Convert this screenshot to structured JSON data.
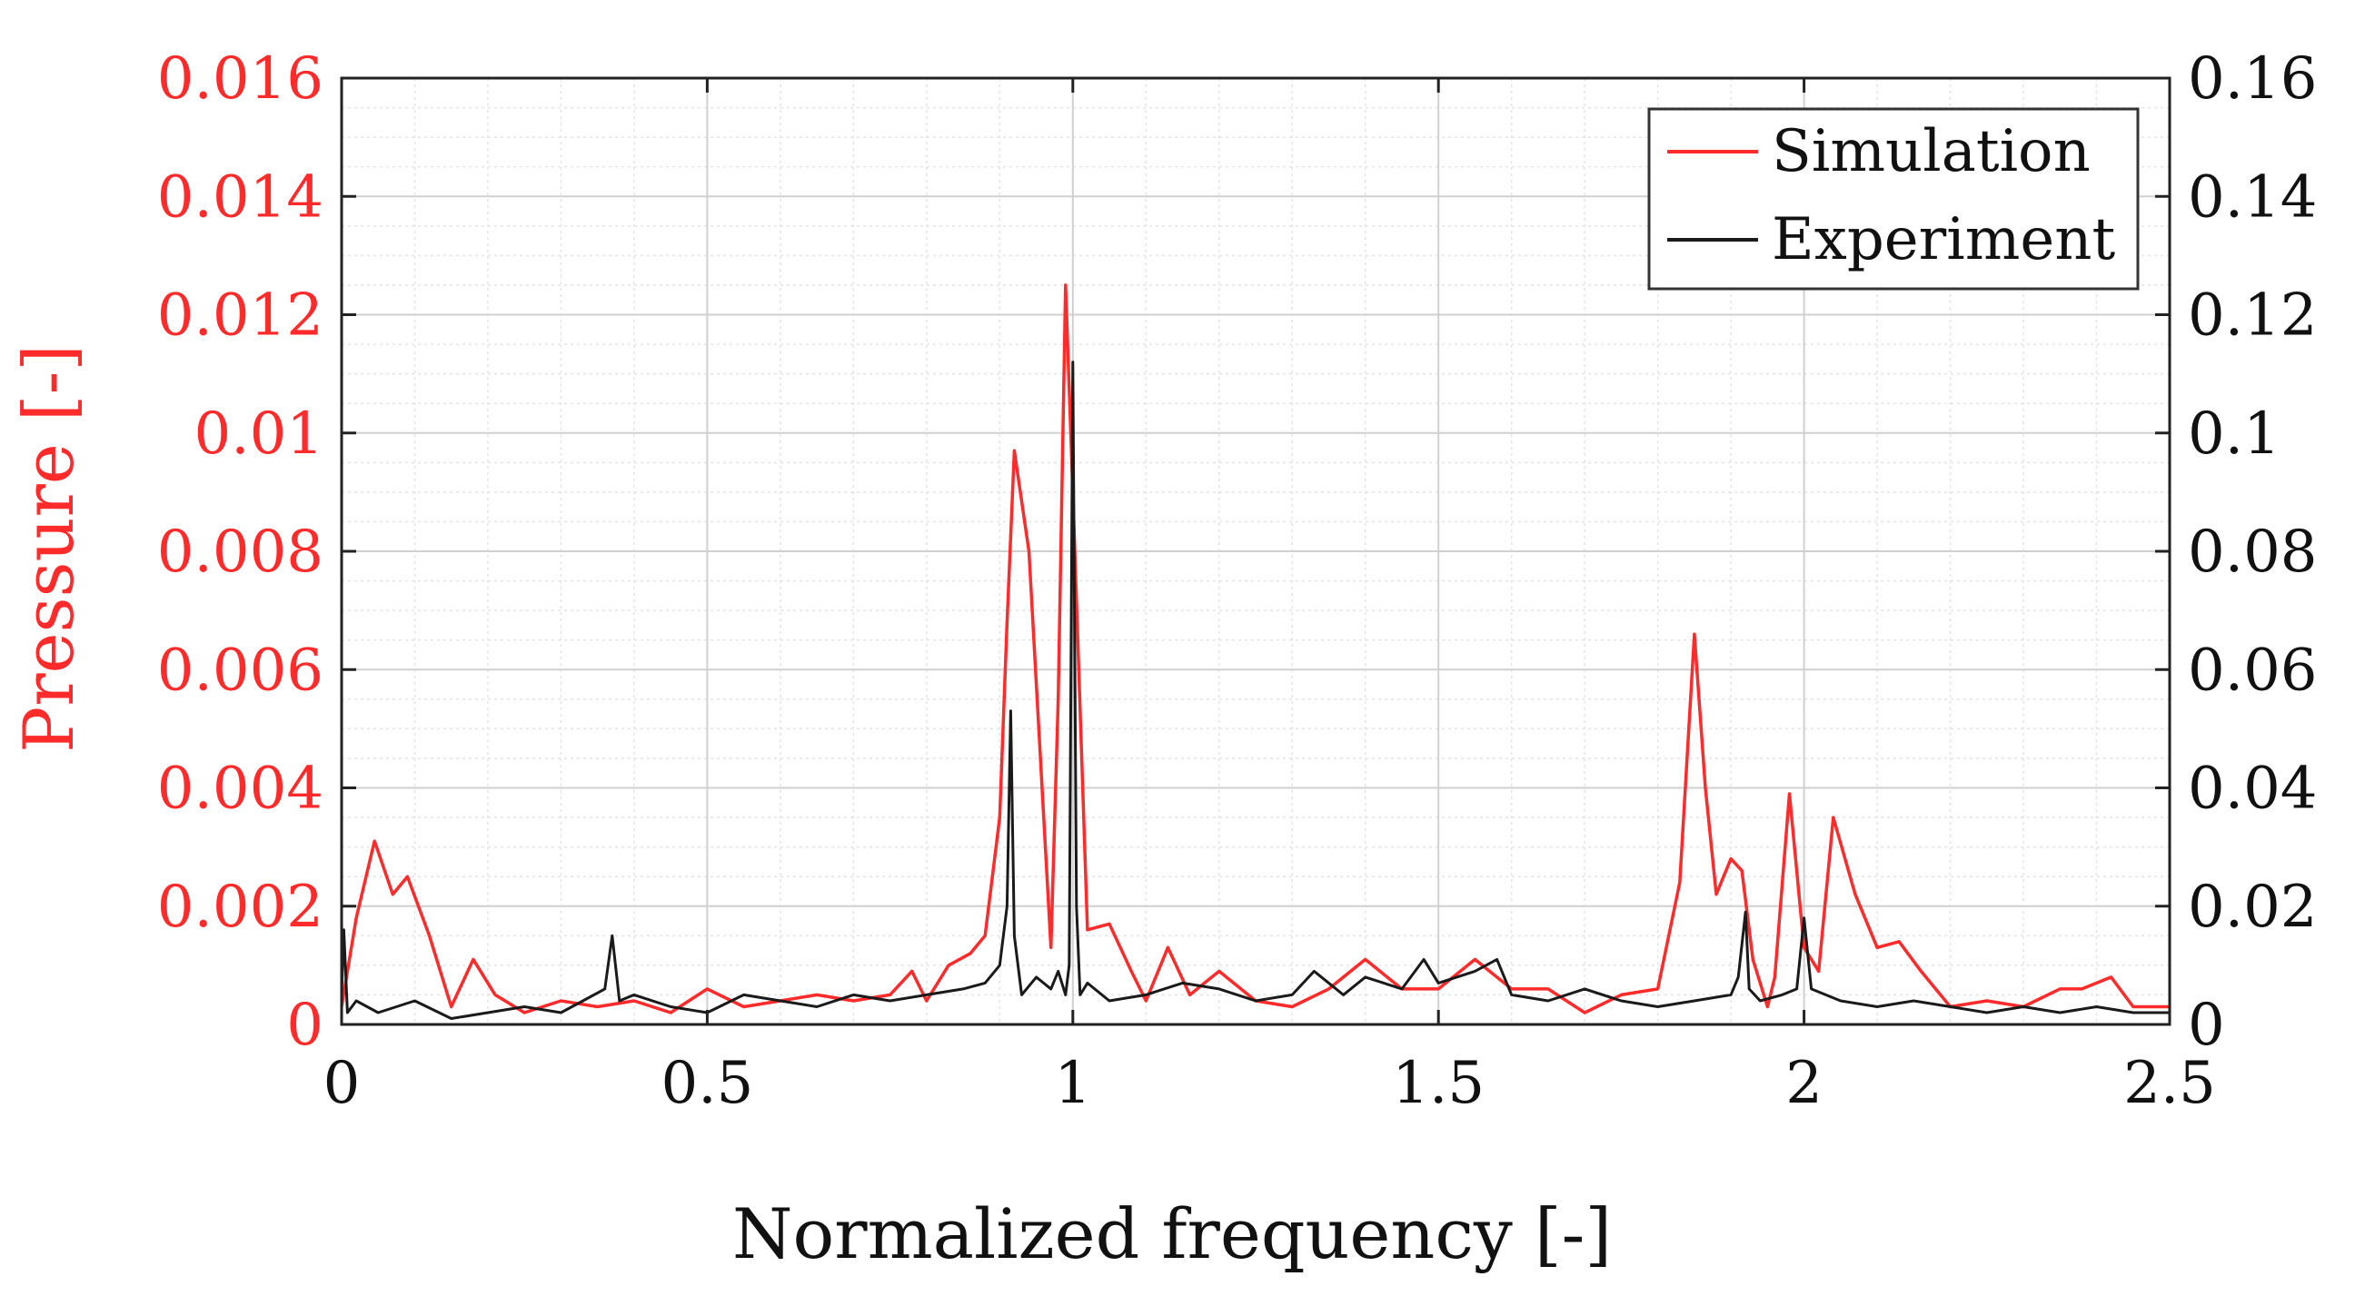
{
  "chart_data": {
    "type": "line",
    "title": "",
    "xlabel": "Normalized frequency [-]",
    "ylabel": "Pressure [-]",
    "xlim": [
      0,
      2.5
    ],
    "ylim_left": [
      0,
      0.016
    ],
    "ylim_right": [
      0,
      0.16
    ],
    "grid": true,
    "legend_position": "top-right",
    "x_ticks": [
      "0",
      "0.5",
      "1",
      "1.5",
      "2",
      "2.5"
    ],
    "x_tick_values": [
      0,
      0.5,
      1,
      1.5,
      2,
      2.5
    ],
    "y_left_ticks": [
      "0",
      "0.002",
      "0.004",
      "0.006",
      "0.008",
      "0.01",
      "0.012",
      "0.014",
      "0.016"
    ],
    "y_left_tick_values": [
      0,
      0.002,
      0.004,
      0.006,
      0.008,
      0.01,
      0.012,
      0.014,
      0.016
    ],
    "y_right_ticks": [
      "0",
      "0.02",
      "0.04",
      "0.06",
      "0.08",
      "0.1",
      "0.12",
      "0.14",
      "0.16"
    ],
    "y_right_tick_values": [
      0,
      0.02,
      0.04,
      0.06,
      0.08,
      0.1,
      0.12,
      0.14,
      0.16
    ],
    "series": [
      {
        "name": "Simulation",
        "axis": "left",
        "color": "#ff2a2a",
        "x": [
          0,
          0.02,
          0.045,
          0.07,
          0.09,
          0.12,
          0.15,
          0.18,
          0.21,
          0.25,
          0.3,
          0.35,
          0.4,
          0.45,
          0.5,
          0.55,
          0.6,
          0.65,
          0.7,
          0.75,
          0.78,
          0.8,
          0.83,
          0.86,
          0.88,
          0.9,
          0.91,
          0.92,
          0.94,
          0.97,
          0.98,
          0.99,
          1.0,
          1.02,
          1.05,
          1.08,
          1.1,
          1.13,
          1.16,
          1.2,
          1.25,
          1.3,
          1.35,
          1.4,
          1.45,
          1.5,
          1.55,
          1.6,
          1.65,
          1.7,
          1.75,
          1.8,
          1.83,
          1.85,
          1.865,
          1.88,
          1.9,
          1.915,
          1.93,
          1.95,
          1.96,
          1.98,
          2.0,
          2.02,
          2.04,
          2.07,
          2.1,
          2.13,
          2.16,
          2.2,
          2.25,
          2.3,
          2.35,
          2.38,
          2.42,
          2.45,
          2.5
        ],
        "y": [
          0.0003,
          0.0018,
          0.0031,
          0.0022,
          0.0025,
          0.0015,
          0.0003,
          0.0011,
          0.0005,
          0.0002,
          0.0004,
          0.0003,
          0.0004,
          0.0002,
          0.0006,
          0.0003,
          0.0004,
          0.0005,
          0.0004,
          0.0005,
          0.0009,
          0.0004,
          0.001,
          0.0012,
          0.0015,
          0.0035,
          0.0068,
          0.0097,
          0.008,
          0.0013,
          0.0055,
          0.0125,
          0.009,
          0.0016,
          0.0017,
          0.0009,
          0.0004,
          0.0013,
          0.0005,
          0.0009,
          0.0004,
          0.0003,
          0.0006,
          0.0011,
          0.0006,
          0.0006,
          0.0011,
          0.0006,
          0.0006,
          0.0002,
          0.0005,
          0.0006,
          0.0024,
          0.0066,
          0.004,
          0.0022,
          0.0028,
          0.0026,
          0.0011,
          0.0003,
          0.0008,
          0.0039,
          0.0013,
          0.0009,
          0.0035,
          0.0022,
          0.0013,
          0.0014,
          0.0009,
          0.0003,
          0.0004,
          0.0003,
          0.0006,
          0.0006,
          0.0008,
          0.0003,
          0.0003
        ]
      },
      {
        "name": "Experiment",
        "axis": "right",
        "color": "#1a1a1a",
        "x": [
          0,
          0.003,
          0.008,
          0.02,
          0.05,
          0.1,
          0.15,
          0.2,
          0.25,
          0.3,
          0.33,
          0.36,
          0.37,
          0.38,
          0.4,
          0.45,
          0.5,
          0.55,
          0.6,
          0.65,
          0.7,
          0.75,
          0.8,
          0.85,
          0.88,
          0.9,
          0.91,
          0.915,
          0.92,
          0.93,
          0.95,
          0.97,
          0.98,
          0.99,
          0.995,
          1.0,
          1.005,
          1.01,
          1.02,
          1.05,
          1.1,
          1.15,
          1.2,
          1.25,
          1.3,
          1.33,
          1.37,
          1.4,
          1.45,
          1.48,
          1.5,
          1.55,
          1.58,
          1.6,
          1.65,
          1.7,
          1.75,
          1.8,
          1.85,
          1.9,
          1.91,
          1.92,
          1.925,
          1.94,
          1.97,
          1.99,
          2.0,
          2.01,
          2.05,
          2.1,
          2.15,
          2.2,
          2.25,
          2.3,
          2.35,
          2.4,
          2.45,
          2.5
        ],
        "y": [
          0.005,
          0.016,
          0.002,
          0.004,
          0.002,
          0.004,
          0.001,
          0.002,
          0.003,
          0.002,
          0.004,
          0.006,
          0.015,
          0.004,
          0.005,
          0.003,
          0.002,
          0.005,
          0.004,
          0.003,
          0.005,
          0.004,
          0.005,
          0.006,
          0.007,
          0.01,
          0.02,
          0.053,
          0.015,
          0.005,
          0.008,
          0.006,
          0.009,
          0.005,
          0.01,
          0.112,
          0.02,
          0.005,
          0.007,
          0.004,
          0.005,
          0.007,
          0.006,
          0.004,
          0.005,
          0.009,
          0.005,
          0.008,
          0.006,
          0.011,
          0.007,
          0.009,
          0.011,
          0.005,
          0.004,
          0.006,
          0.004,
          0.003,
          0.004,
          0.005,
          0.008,
          0.019,
          0.006,
          0.004,
          0.005,
          0.006,
          0.018,
          0.006,
          0.004,
          0.003,
          0.004,
          0.003,
          0.002,
          0.003,
          0.002,
          0.003,
          0.002,
          0.002
        ]
      }
    ]
  }
}
